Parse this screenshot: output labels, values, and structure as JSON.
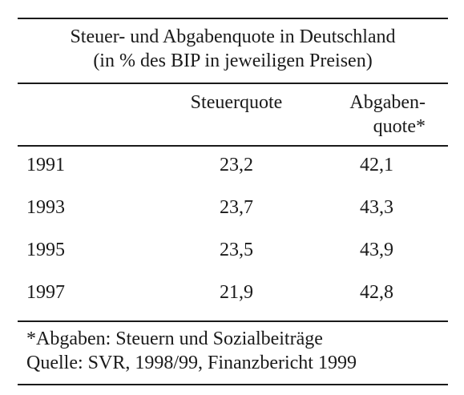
{
  "title": {
    "line1": "Steuer- und Abgabenquote in Deutschland",
    "line2": "(in % des BIP in jeweiligen Preisen)"
  },
  "columns": {
    "steuerquote": "Steuerquote",
    "abgabenquote_line1": "Abgaben-",
    "abgabenquote_line2": "quote*"
  },
  "rows": [
    {
      "year": "1991",
      "steuerquote": "23,2",
      "abgabenquote": "42,1"
    },
    {
      "year": "1993",
      "steuerquote": "23,7",
      "abgabenquote": "43,3"
    },
    {
      "year": "1995",
      "steuerquote": "23,5",
      "abgabenquote": "43,9"
    },
    {
      "year": "1997",
      "steuerquote": "21,9",
      "abgabenquote": "42,8"
    }
  ],
  "footnote": {
    "line1": "*Abgaben: Steuern und Sozialbeiträge",
    "line2": "Quelle: SVR, 1998/99, Finanzbericht 1999"
  }
}
